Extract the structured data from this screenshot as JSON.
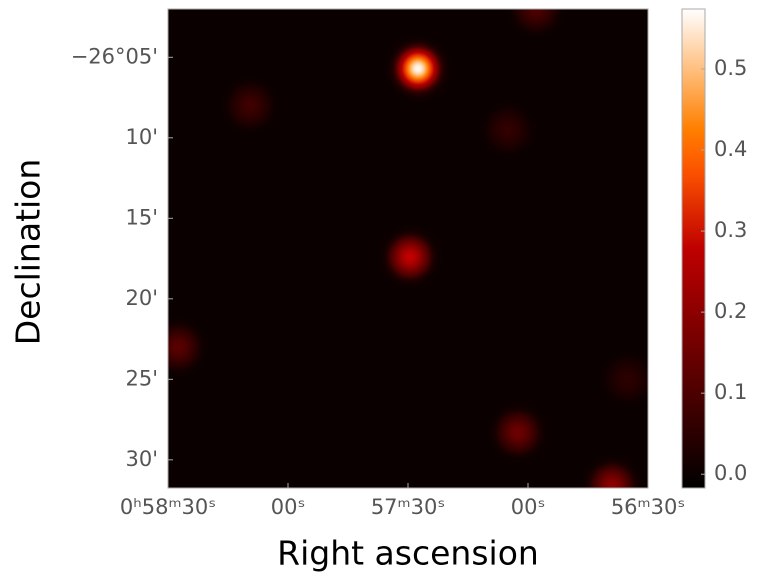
{
  "chart_data": {
    "type": "image",
    "xlabel": "Right ascension",
    "ylabel": "Declination",
    "xlim": [
      3510,
      3390
    ],
    "xticks": [
      {
        "value": 3510,
        "label": "0ʰ58ᵐ30ˢ"
      },
      {
        "value": 3480,
        "label": "00ˢ"
      },
      {
        "value": 3450,
        "label": "57ᵐ30ˢ"
      },
      {
        "value": 3420,
        "label": "00ˢ"
      },
      {
        "value": 3390,
        "label": "56ᵐ30ˢ"
      }
    ],
    "ylim": [
      -1591.75,
      -1562
    ],
    "yticks": [
      {
        "value": -1565,
        "label": "−26°05'"
      },
      {
        "value": -1570,
        "label": "10'"
      },
      {
        "value": -1575,
        "label": "15'"
      },
      {
        "value": -1580,
        "label": "20'"
      },
      {
        "value": -1585,
        "label": "25'"
      },
      {
        "value": -1590,
        "label": "30'"
      }
    ],
    "clim": [
      -0.017,
      0.574
    ],
    "cticks": [
      {
        "value": 0,
        "label": "0.0"
      },
      0.1,
      0.2,
      0.3,
      0.4,
      0.5
    ],
    "colormap": "gist_heat",
    "x": [
      3447.5,
      3449.5,
      3489.5,
      3422.5,
      3399,
      3507.5,
      3418,
      3425,
      3395
    ],
    "y": [
      -1565.7,
      -1577.4,
      -1568,
      -1588.3,
      -1591.6,
      -1583,
      -1562,
      -1569.5,
      -1585
    ],
    "values": [
      0.57,
      0.28,
      0.08,
      0.15,
      0.2,
      0.12,
      0.1,
      0.06,
      0.05
    ]
  }
}
